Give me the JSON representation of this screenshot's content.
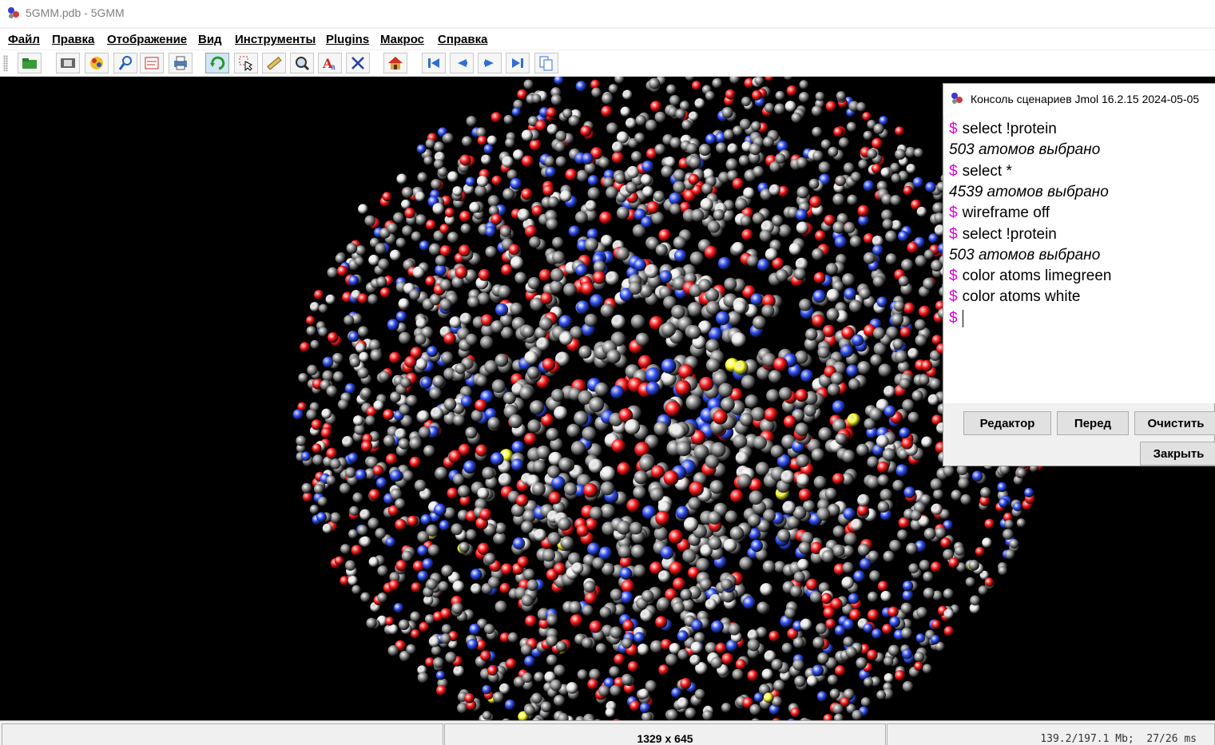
{
  "window": {
    "title": "5GMM.pdb - 5GMM"
  },
  "menu": [
    "Файл",
    "Правка",
    "Отображение",
    "Вид",
    "Инструменты",
    "Plugins",
    "Макрос",
    "Справка"
  ],
  "toolbar": {
    "buttons": [
      {
        "name": "open-file-icon"
      },
      {
        "name": "export-image-icon"
      },
      {
        "name": "rendering-icon"
      },
      {
        "name": "inspect-icon"
      },
      {
        "name": "script-editor-icon"
      },
      {
        "name": "print-icon"
      },
      {
        "name": "rotate-icon"
      },
      {
        "name": "pick-icon"
      },
      {
        "name": "measure-icon"
      },
      {
        "name": "zoom-icon"
      },
      {
        "name": "label-icon"
      },
      {
        "name": "axes-icon"
      },
      {
        "name": "home-icon"
      },
      {
        "name": "first-frame-icon"
      },
      {
        "name": "previous-frame-icon"
      },
      {
        "name": "next-frame-icon"
      },
      {
        "name": "last-frame-icon"
      },
      {
        "name": "copy-icon"
      }
    ]
  },
  "console": {
    "title": "Консоль сценариев Jmol 16.2.15  2024-05-05",
    "lines": [
      {
        "type": "command",
        "prompt": "$",
        "text": "select !protein"
      },
      {
        "type": "result",
        "text": "503 атомов выбрано"
      },
      {
        "type": "command",
        "prompt": "$",
        "text": "select *"
      },
      {
        "type": "result",
        "text": "4539 атомов выбрано"
      },
      {
        "type": "command",
        "prompt": "$",
        "text": "wireframe off"
      },
      {
        "type": "command",
        "prompt": "$",
        "text": "select !protein"
      },
      {
        "type": "result",
        "text": "503 атомов выбрано"
      },
      {
        "type": "command",
        "prompt": "$",
        "text": "color atoms limegreen"
      },
      {
        "type": "command",
        "prompt": "$",
        "text": "color atoms white"
      },
      {
        "type": "input",
        "prompt": "$",
        "text": ""
      }
    ],
    "buttons": {
      "editor": "Редактор",
      "history": "Перед",
      "clear": "Очистить",
      "close": "Закрыть"
    }
  },
  "status": {
    "dimensions": "1329 x 645",
    "memory": "139.2/197.1 Mb;  27/26 ms"
  },
  "colors": {
    "background": "#000000",
    "carbon": "#8c8c8c",
    "oxygen": "#ff1a1a",
    "nitrogen": "#3050f8",
    "hydrogen": "#ffffff",
    "sulfur": "#ffff30",
    "prompt": "#e000e0"
  }
}
